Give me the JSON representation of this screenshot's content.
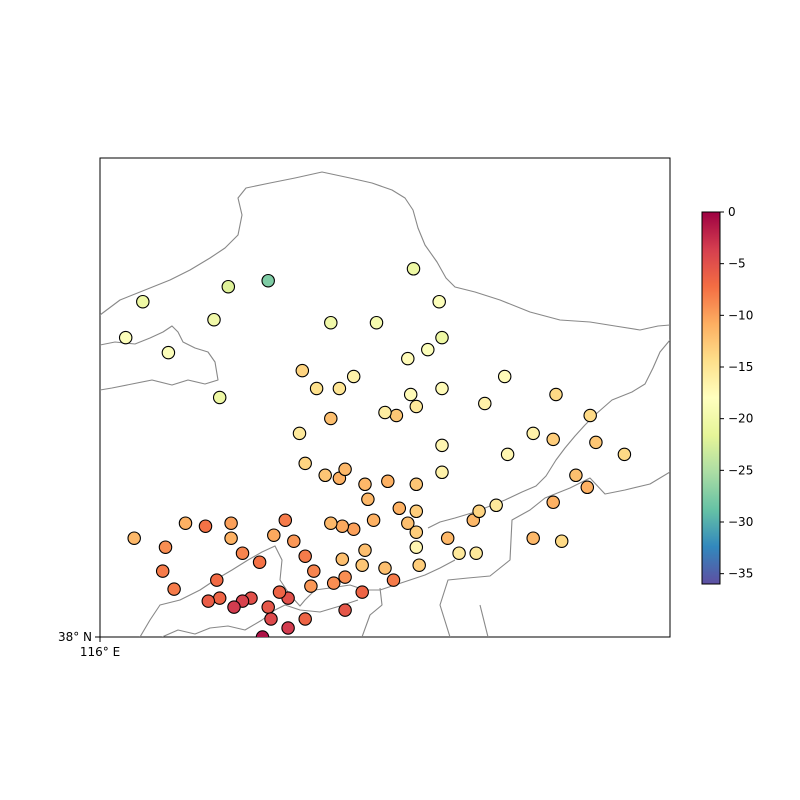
{
  "axes": {
    "x_tick_label": "116° E",
    "y_tick_label": "38° N"
  },
  "colorbar": {
    "colormap": "Spectral",
    "vmin": -36,
    "vmax": 0,
    "ticks": [
      {
        "value": 0,
        "label": "0"
      },
      {
        "value": -5,
        "label": "−5"
      },
      {
        "value": -10,
        "label": "−10"
      },
      {
        "value": -15,
        "label": "−15"
      },
      {
        "value": -20,
        "label": "−20"
      },
      {
        "value": -25,
        "label": "−25"
      },
      {
        "value": -30,
        "label": "−30"
      },
      {
        "value": -35,
        "label": "−35"
      }
    ]
  },
  "chart_data": {
    "type": "scatter",
    "xlim": [
      116,
      136
    ],
    "ylim": [
      38,
      54
    ],
    "points": [
      {
        "lon": 127.0,
        "lat": 50.3,
        "v": -20.5
      },
      {
        "lon": 127.9,
        "lat": 49.2,
        "v": -18.5
      },
      {
        "lon": 128.0,
        "lat": 48.0,
        "v": -20.5
      },
      {
        "lon": 121.9,
        "lat": 49.9,
        "v": -27.5
      },
      {
        "lon": 120.5,
        "lat": 49.7,
        "v": -22.0
      },
      {
        "lon": 117.5,
        "lat": 49.2,
        "v": -20.5
      },
      {
        "lon": 116.9,
        "lat": 48.0,
        "v": -18.5
      },
      {
        "lon": 120.0,
        "lat": 48.6,
        "v": -20.0
      },
      {
        "lon": 118.4,
        "lat": 47.5,
        "v": -18.5
      },
      {
        "lon": 124.1,
        "lat": 48.5,
        "v": -20.0
      },
      {
        "lon": 125.7,
        "lat": 48.5,
        "v": -19.5
      },
      {
        "lon": 120.2,
        "lat": 46.0,
        "v": -20.5
      },
      {
        "lon": 123.1,
        "lat": 46.9,
        "v": -13.5
      },
      {
        "lon": 123.6,
        "lat": 46.3,
        "v": -14.5
      },
      {
        "lon": 124.4,
        "lat": 46.3,
        "v": -15.0
      },
      {
        "lon": 124.9,
        "lat": 46.7,
        "v": -16.5
      },
      {
        "lon": 126.8,
        "lat": 47.3,
        "v": -17.5
      },
      {
        "lon": 127.5,
        "lat": 47.6,
        "v": -18.5
      },
      {
        "lon": 126.9,
        "lat": 46.1,
        "v": -17.5
      },
      {
        "lon": 128.0,
        "lat": 46.3,
        "v": -17.5
      },
      {
        "lon": 130.2,
        "lat": 46.7,
        "v": -17.5
      },
      {
        "lon": 129.5,
        "lat": 45.8,
        "v": -16.5
      },
      {
        "lon": 132.0,
        "lat": 46.1,
        "v": -14.0
      },
      {
        "lon": 133.2,
        "lat": 45.4,
        "v": -14.0
      },
      {
        "lon": 133.4,
        "lat": 44.5,
        "v": -12.5
      },
      {
        "lon": 134.4,
        "lat": 44.1,
        "v": -14.0
      },
      {
        "lon": 131.2,
        "lat": 44.8,
        "v": -16.5
      },
      {
        "lon": 131.9,
        "lat": 44.6,
        "v": -13.0
      },
      {
        "lon": 130.3,
        "lat": 44.1,
        "v": -17.0
      },
      {
        "lon": 128.0,
        "lat": 44.4,
        "v": -17.0
      },
      {
        "lon": 128.0,
        "lat": 43.5,
        "v": -16.5
      },
      {
        "lon": 132.7,
        "lat": 43.4,
        "v": -12.0
      },
      {
        "lon": 133.1,
        "lat": 43.0,
        "v": -11.0
      },
      {
        "lon": 131.9,
        "lat": 42.5,
        "v": -11.0
      },
      {
        "lon": 132.2,
        "lat": 41.2,
        "v": -14.0
      },
      {
        "lon": 131.2,
        "lat": 41.3,
        "v": -11.5
      },
      {
        "lon": 129.1,
        "lat": 41.9,
        "v": -11.5
      },
      {
        "lon": 129.3,
        "lat": 42.2,
        "v": -13.5
      },
      {
        "lon": 129.9,
        "lat": 42.4,
        "v": -15.5
      },
      {
        "lon": 127.1,
        "lat": 45.7,
        "v": -15.5
      },
      {
        "lon": 126.4,
        "lat": 45.4,
        "v": -12.5
      },
      {
        "lon": 126.0,
        "lat": 45.5,
        "v": -16.0
      },
      {
        "lon": 124.1,
        "lat": 45.3,
        "v": -12.0
      },
      {
        "lon": 123.0,
        "lat": 44.8,
        "v": -15.5
      },
      {
        "lon": 123.2,
        "lat": 43.8,
        "v": -13.5
      },
      {
        "lon": 123.9,
        "lat": 43.4,
        "v": -12.5
      },
      {
        "lon": 124.4,
        "lat": 43.3,
        "v": -11.0
      },
      {
        "lon": 124.6,
        "lat": 43.6,
        "v": -11.5
      },
      {
        "lon": 125.3,
        "lat": 43.1,
        "v": -11.5
      },
      {
        "lon": 126.1,
        "lat": 43.2,
        "v": -11.0
      },
      {
        "lon": 127.1,
        "lat": 43.1,
        "v": -12.5
      },
      {
        "lon": 125.4,
        "lat": 42.6,
        "v": -11.5
      },
      {
        "lon": 126.5,
        "lat": 42.3,
        "v": -11.0
      },
      {
        "lon": 127.1,
        "lat": 42.2,
        "v": -13.0
      },
      {
        "lon": 125.6,
        "lat": 41.9,
        "v": -11.0
      },
      {
        "lon": 126.8,
        "lat": 41.8,
        "v": -12.0
      },
      {
        "lon": 127.1,
        "lat": 41.5,
        "v": -13.0
      },
      {
        "lon": 127.1,
        "lat": 41.0,
        "v": -17.0
      },
      {
        "lon": 127.2,
        "lat": 40.4,
        "v": -13.0
      },
      {
        "lon": 128.2,
        "lat": 41.3,
        "v": -11.5
      },
      {
        "lon": 128.6,
        "lat": 40.8,
        "v": -15.5
      },
      {
        "lon": 129.2,
        "lat": 40.8,
        "v": -15.5
      },
      {
        "lon": 124.9,
        "lat": 41.6,
        "v": -10.0
      },
      {
        "lon": 124.5,
        "lat": 41.7,
        "v": -10.5
      },
      {
        "lon": 124.1,
        "lat": 41.8,
        "v": -11.5
      },
      {
        "lon": 122.8,
        "lat": 41.2,
        "v": -9.5
      },
      {
        "lon": 123.2,
        "lat": 40.7,
        "v": -8.0
      },
      {
        "lon": 124.5,
        "lat": 40.6,
        "v": -12.0
      },
      {
        "lon": 125.3,
        "lat": 40.9,
        "v": -12.0
      },
      {
        "lon": 125.2,
        "lat": 40.4,
        "v": -12.5
      },
      {
        "lon": 126.0,
        "lat": 40.3,
        "v": -12.0
      },
      {
        "lon": 126.3,
        "lat": 39.9,
        "v": -8.0
      },
      {
        "lon": 124.6,
        "lat": 40.0,
        "v": -9.0
      },
      {
        "lon": 124.2,
        "lat": 39.8,
        "v": -9.0
      },
      {
        "lon": 123.4,
        "lat": 39.7,
        "v": -9.5
      },
      {
        "lon": 123.5,
        "lat": 40.2,
        "v": -8.5
      },
      {
        "lon": 125.2,
        "lat": 39.5,
        "v": -6.5
      },
      {
        "lon": 124.6,
        "lat": 38.9,
        "v": -5.5
      },
      {
        "lon": 123.2,
        "lat": 38.6,
        "v": -6.5
      },
      {
        "lon": 122.6,
        "lat": 39.3,
        "v": -5.0
      },
      {
        "lon": 122.6,
        "lat": 38.3,
        "v": -3.5
      },
      {
        "lon": 121.9,
        "lat": 39.0,
        "v": -5.5
      },
      {
        "lon": 122.0,
        "lat": 38.6,
        "v": -4.5
      },
      {
        "lon": 121.7,
        "lat": 38.0,
        "v": -1.0
      },
      {
        "lon": 122.3,
        "lat": 39.5,
        "v": -6.5
      },
      {
        "lon": 121.3,
        "lat": 39.3,
        "v": -5.0
      },
      {
        "lon": 121.0,
        "lat": 39.2,
        "v": -4.0
      },
      {
        "lon": 120.7,
        "lat": 39.0,
        "v": -3.5
      },
      {
        "lon": 120.2,
        "lat": 39.3,
        "v": -6.5
      },
      {
        "lon": 119.8,
        "lat": 39.2,
        "v": -6.0
      },
      {
        "lon": 120.1,
        "lat": 39.9,
        "v": -7.0
      },
      {
        "lon": 118.6,
        "lat": 39.6,
        "v": -8.0
      },
      {
        "lon": 118.2,
        "lat": 40.2,
        "v": -8.0
      },
      {
        "lon": 118.3,
        "lat": 41.0,
        "v": -9.0
      },
      {
        "lon": 117.2,
        "lat": 41.3,
        "v": -11.5
      },
      {
        "lon": 119.7,
        "lat": 41.7,
        "v": -7.5
      },
      {
        "lon": 119.0,
        "lat": 41.8,
        "v": -11.0
      },
      {
        "lon": 120.6,
        "lat": 41.8,
        "v": -10.0
      },
      {
        "lon": 120.6,
        "lat": 41.3,
        "v": -11.0
      },
      {
        "lon": 121.0,
        "lat": 40.8,
        "v": -8.5
      },
      {
        "lon": 121.6,
        "lat": 40.5,
        "v": -7.5
      },
      {
        "lon": 122.1,
        "lat": 41.4,
        "v": -10.5
      },
      {
        "lon": 122.5,
        "lat": 41.9,
        "v": -8.0
      }
    ]
  }
}
